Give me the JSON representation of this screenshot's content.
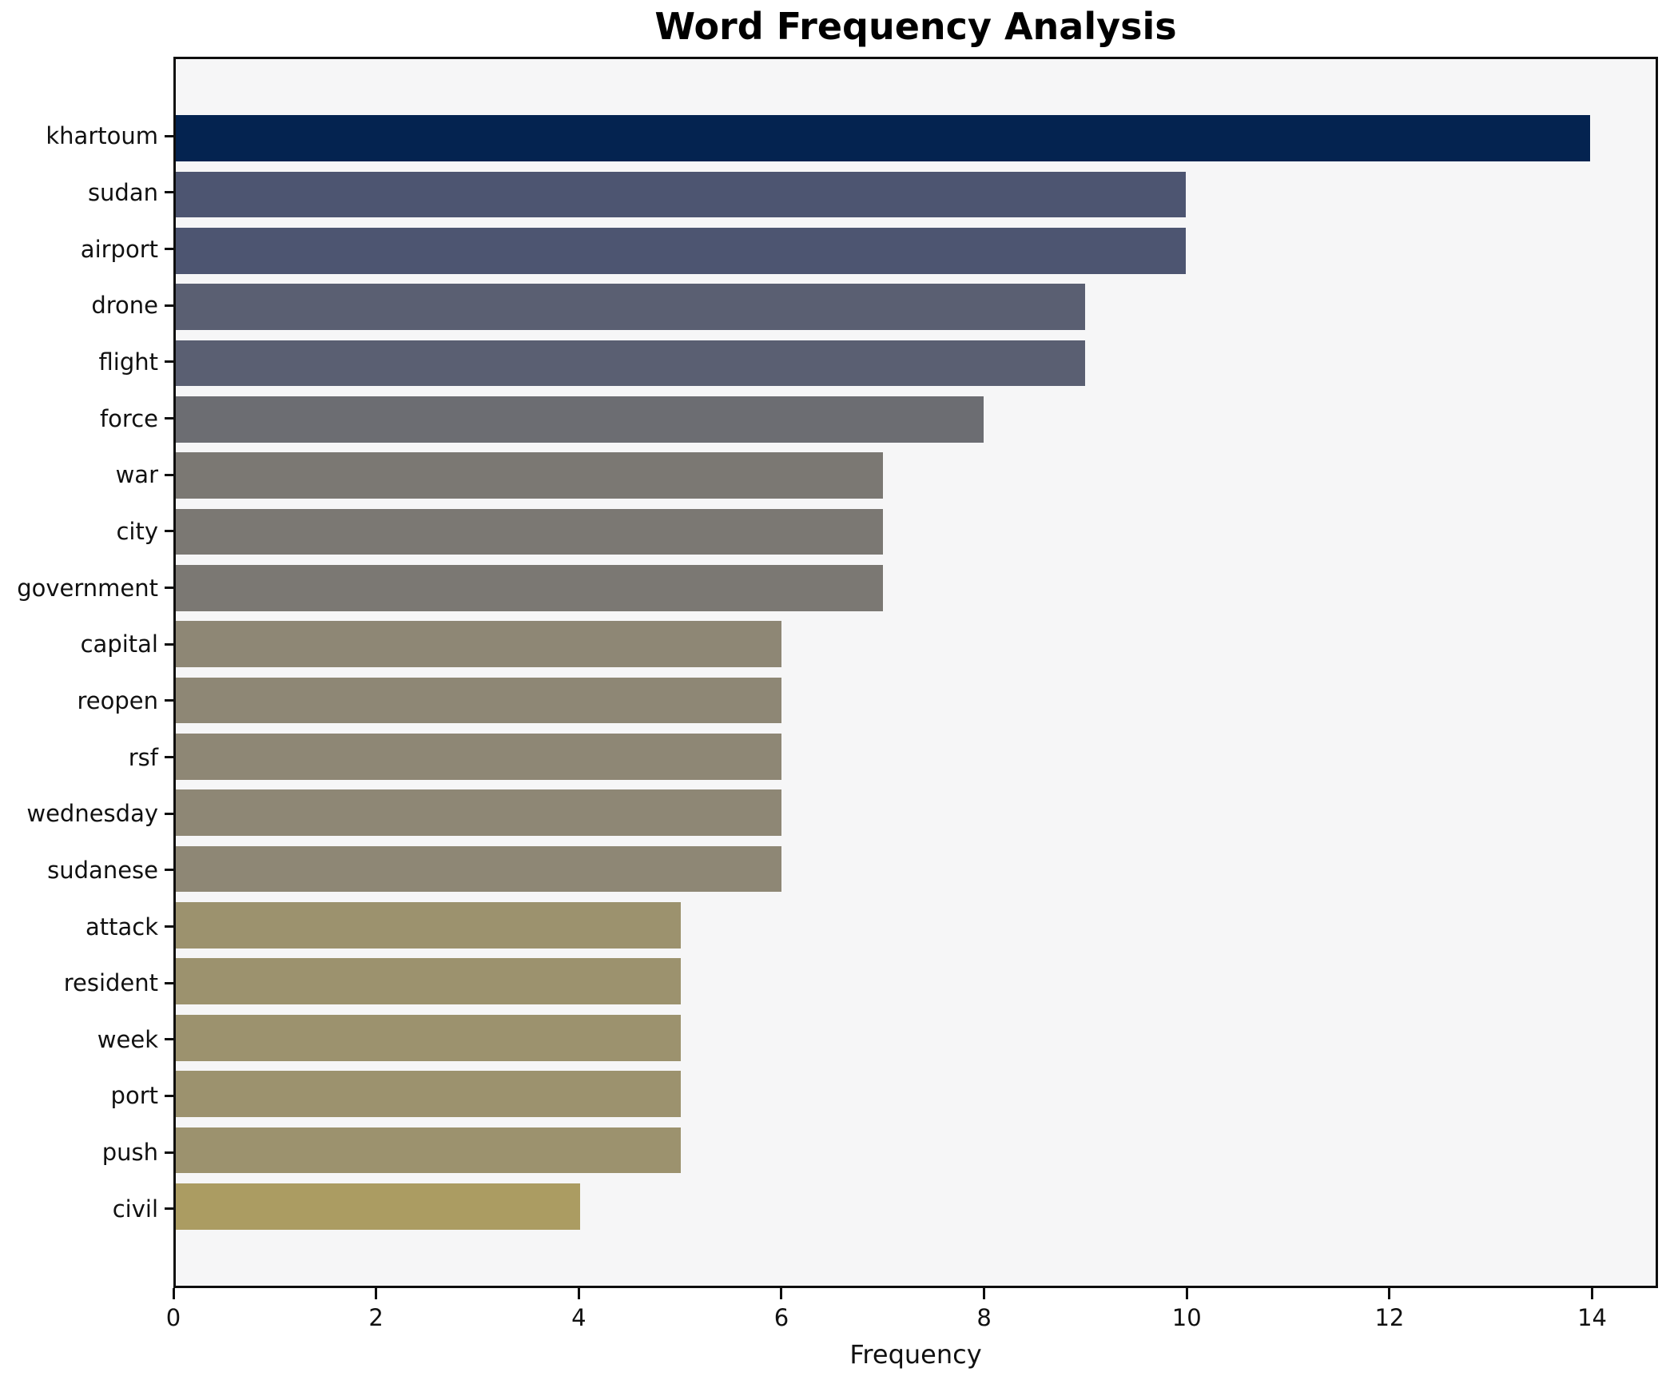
{
  "title": "Word Frequency Analysis",
  "chart_data": {
    "type": "bar",
    "orientation": "horizontal",
    "title": "Word Frequency Analysis",
    "xlabel": "Frequency",
    "ylabel": "",
    "categories": [
      "khartoum",
      "sudan",
      "airport",
      "drone",
      "flight",
      "force",
      "war",
      "city",
      "government",
      "capital",
      "reopen",
      "rsf",
      "wednesday",
      "sudanese",
      "attack",
      "resident",
      "week",
      "port",
      "push",
      "civil"
    ],
    "values": [
      14,
      10,
      10,
      9,
      9,
      8,
      7,
      7,
      7,
      6,
      6,
      6,
      6,
      6,
      5,
      5,
      5,
      5,
      5,
      4
    ],
    "bar_colors": [
      "#042350",
      "#4d5571",
      "#4d5571",
      "#5a5f72",
      "#5a5f72",
      "#6c6d72",
      "#7b7873",
      "#7b7873",
      "#7b7873",
      "#8e8775",
      "#8e8775",
      "#8e8775",
      "#8e8775",
      "#8e8775",
      "#9c926e",
      "#9c926e",
      "#9c926e",
      "#9c926e",
      "#9c926e",
      "#ab9c62"
    ],
    "xticks": [
      0,
      2,
      4,
      6,
      8,
      10,
      12,
      14
    ],
    "xlim": [
      0,
      14.65
    ],
    "grid": false,
    "legend_position": "none",
    "plot_bg": "#f6f6f7",
    "figure_bg": "#ffffff",
    "spine_color": "#0e0e0e"
  }
}
